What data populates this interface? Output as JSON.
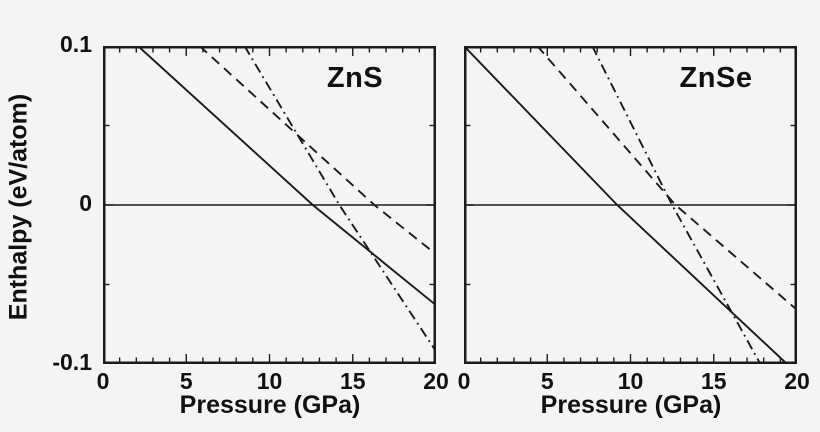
{
  "figure": {
    "background_color": "#f5f4f2",
    "ink_color": "#1b1b1b",
    "y_axis_label": "Enthalpy (eV/atom)",
    "x_axis_label": "Pressure (GPa)",
    "x_ticks": [
      {
        "value": 0,
        "label": "0"
      },
      {
        "value": 5,
        "label": "5"
      },
      {
        "value": 10,
        "label": "10"
      },
      {
        "value": 15,
        "label": "15"
      },
      {
        "value": 20,
        "label": "20"
      }
    ],
    "y_ticks": [
      {
        "value": 0.1,
        "label": "0.1"
      },
      {
        "value": 0,
        "label": "0"
      },
      {
        "value": -0.1,
        "label": "-0.1"
      }
    ]
  },
  "chart_data": [
    {
      "type": "line",
      "title": "ZnS",
      "xlabel": "Pressure (GPa)",
      "ylabel": "Enthalpy (eV/atom)",
      "xlim": [
        0,
        20
      ],
      "ylim": [
        -0.1,
        0.1
      ],
      "x_major_ticks": [
        0,
        5,
        10,
        15,
        20
      ],
      "x_minor_tick_step": 1,
      "y_major_ticks": [
        -0.1,
        0,
        0.1
      ],
      "y_minor_ticks": [
        -0.05,
        0.05
      ],
      "grid": false,
      "legend": "none",
      "zero_reference_line": 0,
      "series": [
        {
          "name": "solid-phase-curve",
          "style": "solid",
          "points": [
            [
              2.1,
              0.1
            ],
            [
              12.6,
              0.0
            ],
            [
              20.0,
              -0.063
            ]
          ],
          "zero_crossing_gpa": 12.6
        },
        {
          "name": "dashed-phase-curve",
          "style": "dashed",
          "points": [
            [
              5.8,
              0.1
            ],
            [
              16.3,
              0.0
            ],
            [
              20.0,
              -0.031
            ]
          ],
          "zero_crossing_gpa": 16.3
        },
        {
          "name": "dashdot-phase-curve",
          "style": "dashdot",
          "points": [
            [
              8.5,
              0.1
            ],
            [
              14.2,
              0.0
            ],
            [
              20.0,
              -0.092
            ]
          ],
          "zero_crossing_gpa": 14.2
        }
      ]
    },
    {
      "type": "line",
      "title": "ZnSe",
      "xlabel": "Pressure (GPa)",
      "ylabel": "Enthalpy (eV/atom)",
      "xlim": [
        0,
        20
      ],
      "ylim": [
        -0.1,
        0.1
      ],
      "x_major_ticks": [
        0,
        5,
        10,
        15,
        20
      ],
      "x_minor_tick_step": 1,
      "y_major_ticks": [
        -0.1,
        0,
        0.1
      ],
      "y_minor_ticks": [
        -0.05,
        0.05
      ],
      "grid": false,
      "legend": "none",
      "zero_reference_line": 0,
      "series": [
        {
          "name": "solid-phase-curve",
          "style": "solid",
          "points": [
            [
              0.0,
              0.1
            ],
            [
              9.2,
              0.0
            ],
            [
              19.4,
              -0.1
            ]
          ],
          "zero_crossing_gpa": 9.2
        },
        {
          "name": "dashed-phase-curve",
          "style": "dashed",
          "points": [
            [
              4.4,
              0.1
            ],
            [
              12.7,
              0.0
            ],
            [
              20.0,
              -0.066
            ]
          ],
          "zero_crossing_gpa": 12.7
        },
        {
          "name": "dashdot-phase-curve",
          "style": "dashdot",
          "points": [
            [
              7.7,
              0.1
            ],
            [
              12.5,
              0.0
            ],
            [
              17.8,
              -0.1
            ]
          ],
          "zero_crossing_gpa": 12.5
        }
      ]
    }
  ]
}
